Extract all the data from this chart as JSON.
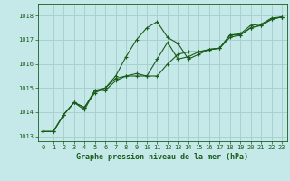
{
  "title": "Graphe pression niveau de la mer (hPa)",
  "bg_color": "#c5e8e8",
  "grid_color": "#a8cccc",
  "line_color": "#1a5c1a",
  "xlim": [
    -0.5,
    23.5
  ],
  "ylim": [
    1012.8,
    1018.5
  ],
  "yticks": [
    1013,
    1014,
    1015,
    1016,
    1017,
    1018
  ],
  "xticks": [
    0,
    1,
    2,
    3,
    4,
    5,
    6,
    7,
    8,
    9,
    10,
    11,
    12,
    13,
    14,
    15,
    16,
    17,
    18,
    19,
    20,
    21,
    22,
    23
  ],
  "series": [
    [
      1013.2,
      1013.2,
      1013.9,
      1014.4,
      1014.2,
      1014.8,
      1015.0,
      1015.5,
      1016.3,
      1017.0,
      1017.5,
      1017.75,
      1017.1,
      1016.85,
      1016.2,
      1016.4,
      1016.6,
      1016.65,
      1017.2,
      1017.25,
      1017.6,
      1017.65,
      1017.9,
      1017.95
    ],
    [
      1013.2,
      1013.2,
      1013.9,
      1014.4,
      1014.1,
      1014.9,
      1015.0,
      1015.4,
      1015.5,
      1015.6,
      1015.5,
      1016.2,
      1016.9,
      1016.2,
      1016.3,
      1016.5,
      1016.6,
      1016.65,
      1017.1,
      1017.2,
      1017.5,
      1017.6,
      1017.85,
      1017.95
    ],
    [
      1013.2,
      1013.2,
      1013.9,
      1014.4,
      1014.2,
      1014.9,
      1014.9,
      1015.3,
      1015.5,
      1015.5,
      1015.5,
      1015.5,
      1016.0,
      1016.4,
      1016.5,
      1016.5,
      1016.6,
      1016.65,
      1017.2,
      1017.2,
      1017.5,
      1017.6,
      1017.85,
      1017.95
    ]
  ]
}
